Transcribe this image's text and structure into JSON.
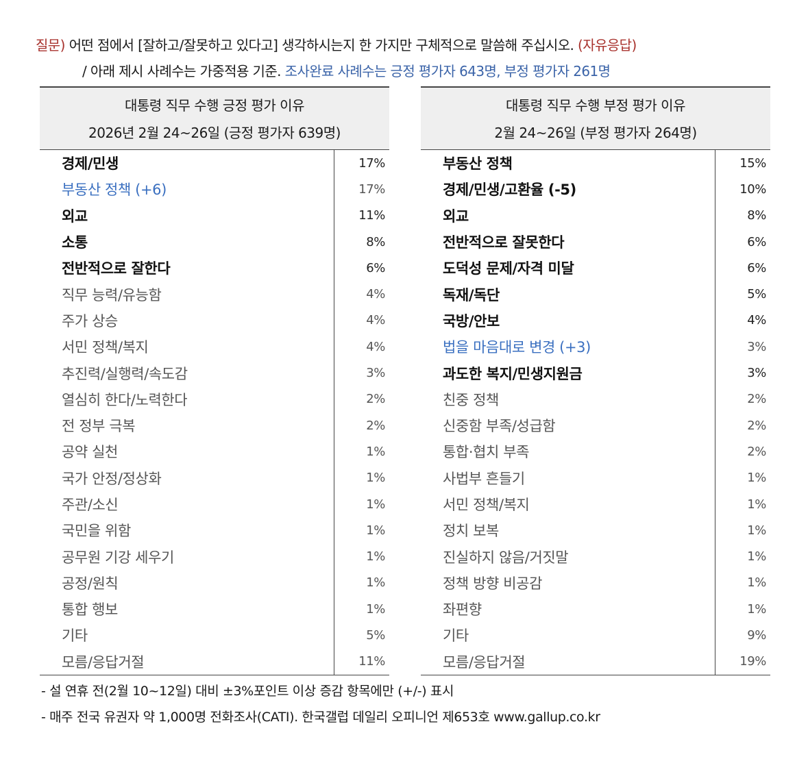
{
  "question": {
    "prefix": "질문)",
    "text": " 어떤 점에서 [잘하고/잘못하고 있다고] 생각하시는지 한 가지만 구체적으로 말씀해 주십시오. ",
    "suffix": "(자유응답)",
    "line2_plain": "/ 아래 제시 사례수는 가중적용 기준. ",
    "line2_blue": "조사완료 사례수는 긍정 평가자 643명, 부정 평가자 261명"
  },
  "positive": {
    "title": "대통령 직무 수행 긍정 평가 이유",
    "subtitle": "2026년 2월 24~26일 (긍정 평가자 639명)",
    "rows": [
      {
        "label": "경제/민생",
        "value": "17%",
        "style": "dark"
      },
      {
        "label": "부동산 정책 (+6)",
        "value": "17%",
        "style": "blue"
      },
      {
        "label": "외교",
        "value": "11%",
        "style": "dark"
      },
      {
        "label": "소통",
        "value": "8%",
        "style": "dark"
      },
      {
        "label": "전반적으로 잘한다",
        "value": "6%",
        "style": "dark"
      },
      {
        "label": "직무 능력/유능함",
        "value": "4%",
        "style": "gray"
      },
      {
        "label": "주가 상승",
        "value": "4%",
        "style": "gray"
      },
      {
        "label": "서민 정책/복지",
        "value": "4%",
        "style": "gray"
      },
      {
        "label": "추진력/실행력/속도감",
        "value": "3%",
        "style": "gray"
      },
      {
        "label": "열심히 한다/노력한다",
        "value": "2%",
        "style": "gray"
      },
      {
        "label": "전 정부 극복",
        "value": "2%",
        "style": "gray"
      },
      {
        "label": "공약 실천",
        "value": "1%",
        "style": "gray"
      },
      {
        "label": "국가 안정/정상화",
        "value": "1%",
        "style": "gray"
      },
      {
        "label": "주관/소신",
        "value": "1%",
        "style": "gray"
      },
      {
        "label": "국민을 위함",
        "value": "1%",
        "style": "gray"
      },
      {
        "label": "공무원 기강 세우기",
        "value": "1%",
        "style": "gray"
      },
      {
        "label": "공정/원칙",
        "value": "1%",
        "style": "gray"
      },
      {
        "label": "통합 행보",
        "value": "1%",
        "style": "gray"
      },
      {
        "label": "기타",
        "value": "5%",
        "style": "gray"
      },
      {
        "label": "모름/응답거절",
        "value": "11%",
        "style": "gray"
      }
    ]
  },
  "negative": {
    "title": "대통령 직무 수행 부정 평가 이유",
    "subtitle": "2월 24~26일 (부정 평가자 264명)",
    "rows": [
      {
        "label": "부동산 정책",
        "value": "15%",
        "style": "dark"
      },
      {
        "label": "경제/민생/고환율 (-5)",
        "value": "10%",
        "style": "dark"
      },
      {
        "label": "외교",
        "value": "8%",
        "style": "dark"
      },
      {
        "label": "전반적으로 잘못한다",
        "value": "6%",
        "style": "dark"
      },
      {
        "label": "도덕성 문제/자격 미달",
        "value": "6%",
        "style": "dark"
      },
      {
        "label": "독재/독단",
        "value": "5%",
        "style": "dark"
      },
      {
        "label": "국방/안보",
        "value": "4%",
        "style": "dark"
      },
      {
        "label": "법을 마음대로 변경 (+3)",
        "value": "3%",
        "style": "blue"
      },
      {
        "label": "과도한 복지/민생지원금",
        "value": "3%",
        "style": "dark"
      },
      {
        "label": "친중 정책",
        "value": "2%",
        "style": "gray"
      },
      {
        "label": "신중함 부족/성급함",
        "value": "2%",
        "style": "gray"
      },
      {
        "label": "통합·협치 부족",
        "value": "2%",
        "style": "gray"
      },
      {
        "label": "사법부 흔들기",
        "value": "1%",
        "style": "gray"
      },
      {
        "label": "서민 정책/복지",
        "value": "1%",
        "style": "gray"
      },
      {
        "label": "정치 보복",
        "value": "1%",
        "style": "gray"
      },
      {
        "label": "진실하지 않음/거짓말",
        "value": "1%",
        "style": "gray"
      },
      {
        "label": "정책 방향 비공감",
        "value": "1%",
        "style": "gray"
      },
      {
        "label": "좌편향",
        "value": "1%",
        "style": "gray"
      },
      {
        "label": "기타",
        "value": "9%",
        "style": "gray"
      },
      {
        "label": "모름/응답거절",
        "value": "19%",
        "style": "gray"
      }
    ]
  },
  "notes": {
    "note1": "- 설 연휴 전(2월 10~12일) 대비 ±3%포인트 이상 증감 항목에만 (+/-) 표시",
    "note2": "- 매주 전국 유권자 약 1,000명 전화조사(CATI). 한국갤럽 데일리 오피니언 제653호 www.gallup.co.kr"
  }
}
